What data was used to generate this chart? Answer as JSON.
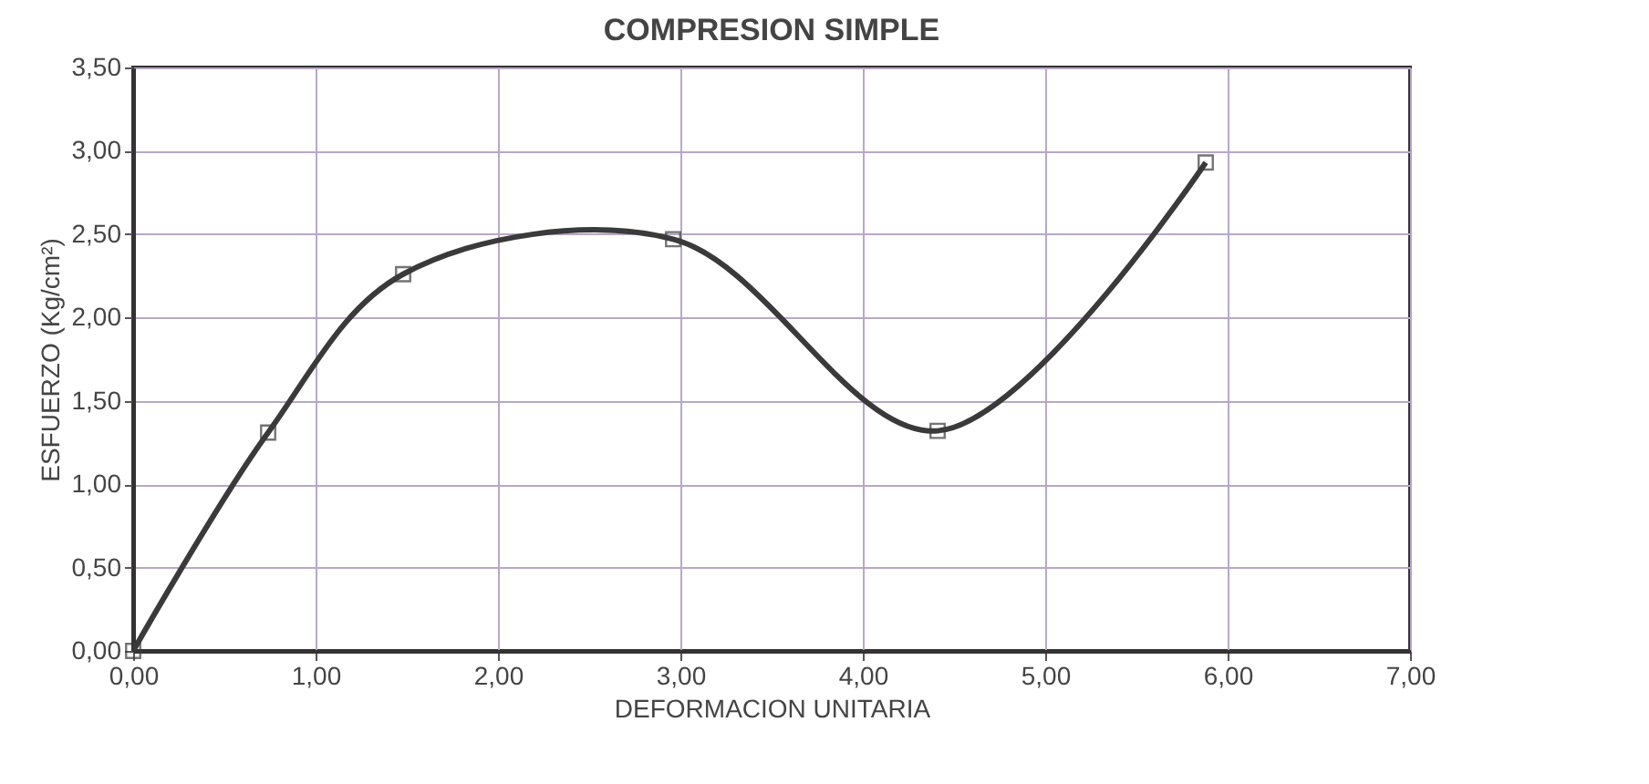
{
  "chart_data": {
    "type": "line",
    "title": "COMPRESION SIMPLE",
    "xlabel": "DEFORMACION UNITARIA",
    "ylabel": "ESFUERZO (Kg/cm²)",
    "x": [
      0,
      0.74,
      1.48,
      2.96,
      4.41,
      5.88
    ],
    "series": [
      {
        "color": "#3a3a3a",
        "values": [
          0,
          1.31,
          2.26,
          2.47,
          1.32,
          2.93
        ]
      }
    ],
    "xlim": [
      0,
      7
    ],
    "ylim": [
      0,
      3.5
    ],
    "xticks": [
      {
        "value": 0,
        "label": "0,00"
      },
      {
        "value": 1,
        "label": "1,00"
      },
      {
        "value": 2,
        "label": "2,00"
      },
      {
        "value": 3,
        "label": "3,00"
      },
      {
        "value": 4,
        "label": "4,00"
      },
      {
        "value": 5,
        "label": "5,00"
      },
      {
        "value": 6,
        "label": "6,00"
      },
      {
        "value": 7,
        "label": "7,00"
      }
    ],
    "yticks": [
      {
        "value": 0,
        "label": "0,00"
      },
      {
        "value": 0.5,
        "label": "0,50"
      },
      {
        "value": 1,
        "label": "1,00"
      },
      {
        "value": 1.5,
        "label": "1,50"
      },
      {
        "value": 2,
        "label": "2,00"
      },
      {
        "value": 2.5,
        "label": "2,50"
      },
      {
        "value": 3,
        "label": "3,00"
      },
      {
        "value": 3.5,
        "label": "3,50"
      }
    ],
    "grid": true,
    "marker": "square"
  }
}
